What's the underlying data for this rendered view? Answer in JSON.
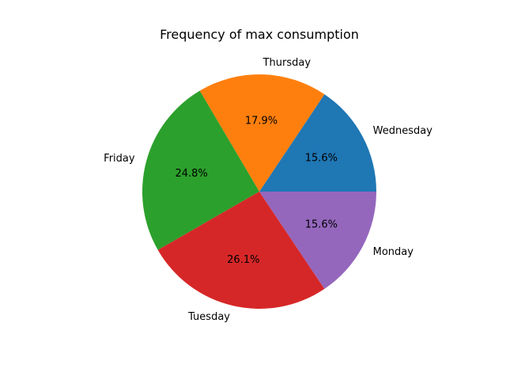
{
  "chart_data": {
    "type": "pie",
    "title": "Frequency of max consumption",
    "slices": [
      {
        "label": "Wednesday",
        "value": 15.6,
        "pct_label": "15.6%",
        "color": "#1f77b4"
      },
      {
        "label": "Thursday",
        "value": 17.9,
        "pct_label": "17.9%",
        "color": "#ff7f0e"
      },
      {
        "label": "Friday",
        "value": 24.8,
        "pct_label": "24.8%",
        "color": "#2ca02c"
      },
      {
        "label": "Tuesday",
        "value": 26.1,
        "pct_label": "26.1%",
        "color": "#d62728"
      },
      {
        "label": "Monday",
        "value": 15.6,
        "pct_label": "15.6%",
        "color": "#9467bd"
      }
    ],
    "start_angle_deg": 0,
    "direction": "counterclockwise",
    "legend": "none"
  }
}
